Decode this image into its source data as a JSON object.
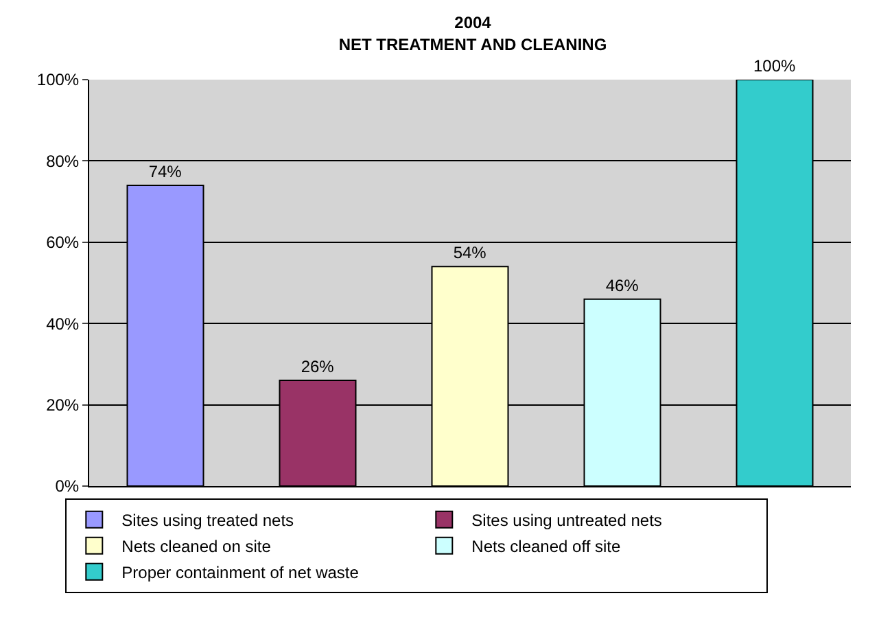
{
  "chart_data": {
    "type": "bar",
    "title": "2004\nNET TREATMENT AND CLEANING",
    "categories": [
      null
    ],
    "series": [
      {
        "name": "Sites using treated nets",
        "color": "#9999ff",
        "values": [
          74
        ],
        "value_labels": [
          "74%"
        ]
      },
      {
        "name": "Sites using untreated nets",
        "color": "#993366",
        "values": [
          26
        ],
        "value_labels": [
          "26%"
        ]
      },
      {
        "name": "Nets cleaned on site",
        "color": "#ffffcc",
        "values": [
          54
        ],
        "value_labels": [
          "54%"
        ]
      },
      {
        "name": "Nets cleaned off site",
        "color": "#ccffff",
        "values": [
          46
        ],
        "value_labels": [
          "46%"
        ]
      },
      {
        "name": "Proper containment of net waste",
        "color": "#33cccc",
        "values": [
          100
        ],
        "value_labels": [
          "100%"
        ]
      }
    ],
    "ylim": [
      0,
      100
    ],
    "yticks": [
      {
        "value": 0,
        "label": "0%"
      },
      {
        "value": 20,
        "label": "20%"
      },
      {
        "value": 40,
        "label": "40%"
      },
      {
        "value": 60,
        "label": "60%"
      },
      {
        "value": 80,
        "label": "80%"
      },
      {
        "value": 100,
        "label": "100%"
      }
    ],
    "grid": "y",
    "legend": "bottom"
  }
}
